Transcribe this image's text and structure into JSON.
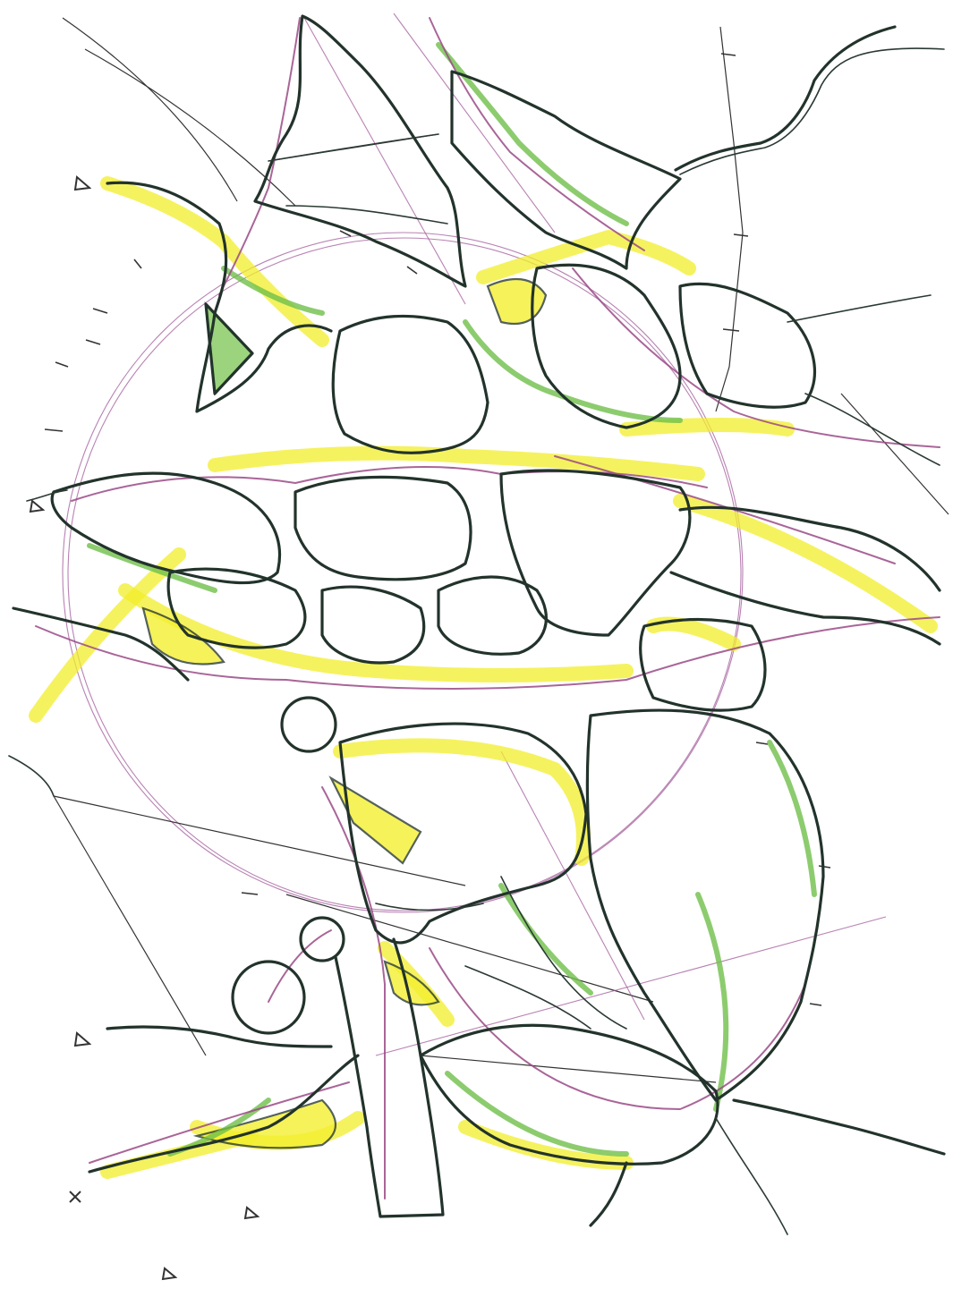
{
  "sketch": {
    "style": "hand-drawn network diagram",
    "palette": {
      "dark_ink": "#22332b",
      "purple_ink": "#9a4a86",
      "green_marker": "#6fbf4a",
      "yellow_highlighter": "#f2ee2a",
      "paper": "#ffffff"
    }
  }
}
